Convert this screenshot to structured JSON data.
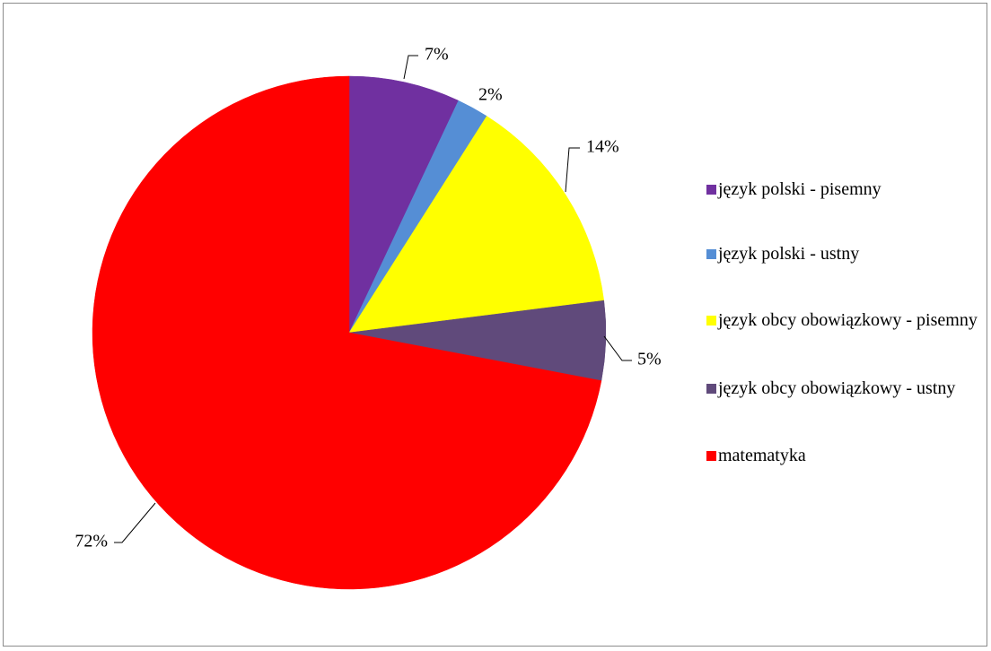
{
  "chart_data": {
    "type": "pie",
    "start_angle_deg": 0,
    "direction": "clockwise",
    "slices": [
      {
        "label": "język polski - pisemny",
        "value": 7,
        "display": "7%",
        "color": "#7030A0"
      },
      {
        "label": "język polski - ustny",
        "value": 2,
        "display": "2%",
        "color": "#558ED5"
      },
      {
        "label": "język obcy obowiązkowy - pisemny",
        "value": 14,
        "display": "14%",
        "color": "#FFFF00"
      },
      {
        "label": "język obcy obowiązkowy - ustny",
        "value": 5,
        "display": "5%",
        "color": "#604A7B"
      },
      {
        "label": "matematyka",
        "value": 72,
        "display": "72%",
        "color": "#FF0000"
      }
    ],
    "legend_position": "right",
    "data_labels": "outside-with-leader-lines"
  },
  "legend": {
    "items": [
      {
        "label": "język polski - pisemny",
        "color": "#7030A0"
      },
      {
        "label": "język polski - ustny",
        "color": "#558ED5"
      },
      {
        "label": "język obcy obowiązkowy - pisemny",
        "color": "#FFFF00"
      },
      {
        "label": "język obcy obowiązkowy - ustny",
        "color": "#604A7B"
      },
      {
        "label": "matematyka",
        "color": "#FF0000"
      }
    ]
  }
}
